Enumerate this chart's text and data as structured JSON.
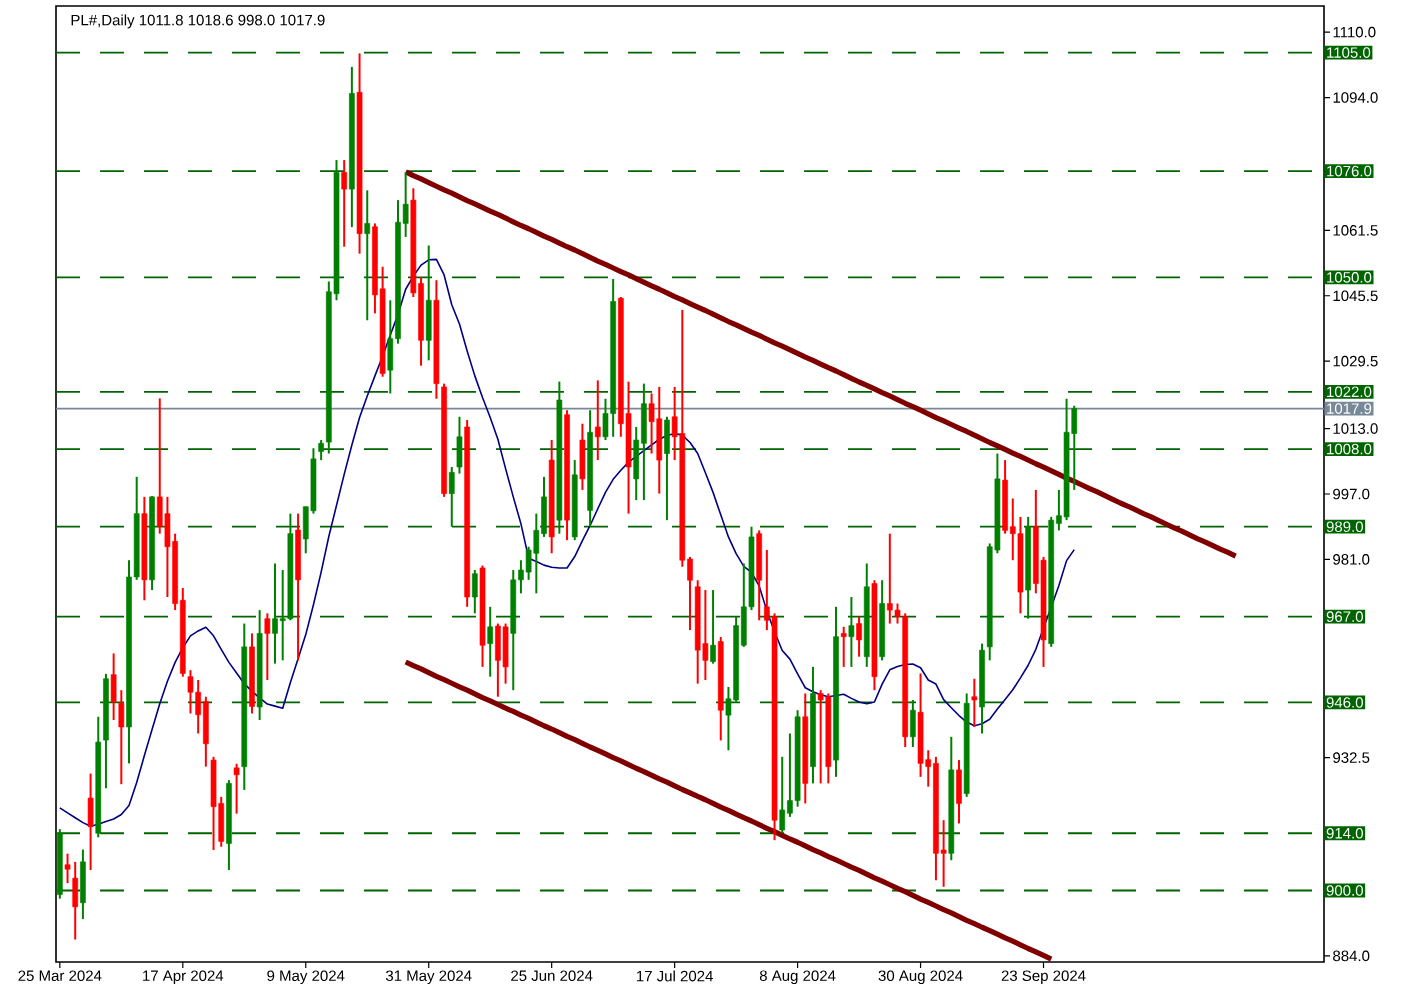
{
  "chart_data": {
    "type": "candlestick",
    "title": "PL#,Daily  1011.8 1018.6 998.0 1017.9",
    "categories": [
      "25 Mar 2024",
      null,
      null,
      null,
      null,
      null,
      null,
      null,
      null,
      null,
      null,
      null,
      null,
      null,
      null,
      null,
      "17 Apr 2024",
      null,
      null,
      null,
      null,
      null,
      null,
      null,
      null,
      null,
      null,
      null,
      null,
      null,
      null,
      null,
      "9 May 2024",
      null,
      null,
      null,
      null,
      null,
      null,
      null,
      null,
      null,
      null,
      null,
      null,
      null,
      null,
      null,
      "31 May 2024",
      null,
      null,
      null,
      null,
      null,
      null,
      null,
      null,
      null,
      null,
      null,
      null,
      null,
      null,
      null,
      "25 Jun 2024",
      null,
      null,
      null,
      null,
      null,
      null,
      null,
      null,
      null,
      null,
      null,
      null,
      null,
      null,
      null,
      "17 Jul 2024",
      null,
      null,
      null,
      null,
      null,
      null,
      null,
      null,
      null,
      null,
      null,
      null,
      null,
      null,
      null,
      "8 Aug 2024",
      null,
      null,
      null,
      null,
      null,
      null,
      null,
      null,
      null,
      null,
      null,
      null,
      null,
      null,
      null,
      "30 Aug 2024",
      null,
      null,
      null,
      null,
      null,
      null,
      null,
      null,
      null,
      null,
      null,
      null,
      null,
      null,
      null,
      "23 Sep 2024",
      null,
      null,
      null,
      null,
      null,
      null,
      null,
      null,
      null,
      null,
      null,
      null,
      null,
      null,
      null,
      null,
      null,
      null,
      null,
      null,
      null,
      null,
      null,
      null,
      null,
      null,
      null,
      null,
      null,
      null,
      null,
      null,
      null,
      null,
      null,
      null
    ],
    "ohlc": [
      [
        899,
        915,
        898,
        914
      ],
      [
        906.3,
        909,
        901.8,
        905.2
      ],
      [
        903,
        907,
        888,
        896
      ],
      [
        897,
        910,
        893,
        907
      ],
      [
        922.6,
        928.6,
        905,
        915.6
      ],
      [
        914,
        942.5,
        913,
        936.3
      ],
      [
        936.8,
        953,
        925,
        951.8
      ],
      [
        952.8,
        958,
        941.7,
        946.2
      ],
      [
        945.8,
        949,
        926,
        940
      ],
      [
        940,
        980.8,
        931.1,
        976.7
      ],
      [
        976.7,
        1001.2,
        976,
        992.2
      ],
      [
        992.2,
        996.3,
        971,
        976
      ],
      [
        976,
        996.5,
        973.5,
        996.3
      ],
      [
        996.3,
        1020.4,
        987.3,
        989
      ],
      [
        992.2,
        996.3,
        971.8,
        984.1
      ],
      [
        985.4,
        987.3,
        968.6,
        970.2
      ],
      [
        971,
        974,
        952.3,
        953.1
      ],
      [
        952.3,
        953.9,
        943.3,
        948.5
      ],
      [
        948.5,
        951.5,
        938.4,
        943
      ],
      [
        946.2,
        947.4,
        930.3,
        935.9
      ],
      [
        931.9,
        932.7,
        909.9,
        920.5
      ],
      [
        921.3,
        922.9,
        910.7,
        912
      ],
      [
        911.5,
        927,
        905,
        926.2
      ],
      [
        930,
        931,
        918.8,
        928.3
      ],
      [
        930.3,
        965.3,
        924.6,
        959.6
      ],
      [
        959.6,
        962.9,
        943.3,
        945
      ],
      [
        944.9,
        968.6,
        941.7,
        962.9
      ],
      [
        966.5,
        967.8,
        951.5,
        962.9
      ],
      [
        962.9,
        980,
        955.5,
        966.5
      ],
      [
        966,
        978.4,
        956.3,
        966.5
      ],
      [
        966.5,
        992.2,
        966.1,
        987.3
      ],
      [
        988.2,
        992.2,
        956.3,
        976
      ],
      [
        986,
        993.9,
        982.5,
        993.9
      ],
      [
        992.9,
        1008.2,
        992.2,
        1005.6
      ],
      [
        1007.4,
        1010.2,
        1005.3,
        1009.4
      ],
      [
        1009.7,
        1049,
        1006.9,
        1046.5
      ],
      [
        1046,
        1078.7,
        1044.4,
        1075.7
      ],
      [
        1075.7,
        1078.7,
        1057.5,
        1071.6
      ],
      [
        1071.6,
        1101.5,
        1062.3,
        1095
      ],
      [
        1095.3,
        1104.8,
        1055.8,
        1060.7
      ],
      [
        1060.7,
        1071.3,
        1039.5,
        1063.2
      ],
      [
        1062.4,
        1063.2,
        1041.2,
        1045.7
      ],
      [
        1047.2,
        1052.6,
        1025.7,
        1026.5
      ],
      [
        1027.3,
        1044.4,
        1021.6,
        1035
      ],
      [
        1035,
        1068.9,
        1033.8,
        1063.5
      ],
      [
        1063.2,
        1075.7,
        1059.9,
        1067.9
      ],
      [
        1068.9,
        1071.8,
        1045.2,
        1046.2
      ],
      [
        1048.5,
        1050.1,
        1028.4,
        1034.6
      ],
      [
        1034.6,
        1057.8,
        1029.7,
        1044.4
      ],
      [
        1044.4,
        1049.3,
        1020.3,
        1024
      ],
      [
        1023.2,
        1024,
        996.3,
        997.1
      ],
      [
        997.1,
        1003.6,
        989,
        1002.3
      ],
      [
        1003.6,
        1015.9,
        1002,
        1011
      ],
      [
        1013.4,
        1015.1,
        969.4,
        971.8
      ],
      [
        971.8,
        978.4,
        967.8,
        977.5
      ],
      [
        978.9,
        979.5,
        954.7,
        960
      ],
      [
        960.4,
        969.4,
        952.3,
        964.5
      ],
      [
        964.7,
        965.3,
        947.4,
        956.3
      ],
      [
        964.5,
        965.3,
        950.6,
        954.7
      ],
      [
        962.9,
        978.4,
        949,
        976
      ],
      [
        976,
        980.8,
        972.7,
        978.4
      ],
      [
        977.9,
        984.1,
        976,
        983.3
      ],
      [
        982.5,
        992.2,
        972.7,
        988.1
      ],
      [
        987.3,
        1001.2,
        986.5,
        996.3
      ],
      [
        1005.3,
        1010.2,
        982.5,
        986.5
      ],
      [
        990.6,
        1024.5,
        987.3,
        1020
      ],
      [
        1016.4,
        1017.5,
        985.7,
        990.6
      ],
      [
        986.5,
        1005.3,
        985.7,
        1001.7
      ],
      [
        1010.2,
        1014.2,
        998,
        1000.7
      ],
      [
        993,
        1017.5,
        989,
        1012.1
      ],
      [
        1013.4,
        1024.8,
        1005.3,
        1011
      ],
      [
        1011,
        1020.3,
        1010.2,
        1016.7
      ],
      [
        1016.7,
        1049.6,
        1011,
        1044.1
      ],
      [
        1044.9,
        1045.2,
        1011,
        1014.2
      ],
      [
        1016.7,
        1024.5,
        992.2,
        1003.6
      ],
      [
        1000.7,
        1013.4,
        995.5,
        1010.2
      ],
      [
        1009.4,
        1024,
        995.5,
        1019.1
      ],
      [
        1019.1,
        1021.6,
        1006.9,
        1014.7
      ],
      [
        1015.4,
        1023.2,
        997.1,
        1005.3
      ],
      [
        1006.9,
        1015.9,
        990.6,
        1015.1
      ],
      [
        1015.9,
        1023.2,
        1005.3,
        1011
      ],
      [
        1011.8,
        1042,
        979.2,
        980.8
      ],
      [
        981.1,
        981.6,
        963.7,
        975.9
      ],
      [
        974.3,
        975.9,
        950.6,
        958.8
      ],
      [
        960.4,
        973.5,
        951.5,
        956.3
      ],
      [
        956,
        973.5,
        955.5,
        960
      ],
      [
        960.9,
        962,
        936.7,
        944.1
      ],
      [
        942.9,
        949.8,
        934.3,
        946.9
      ],
      [
        946.6,
        966.9,
        946.2,
        964.8
      ],
      [
        960,
        980,
        959.6,
        969.4
      ],
      [
        969.4,
        989,
        968.6,
        986.5
      ],
      [
        987.3,
        988.1,
        966.1,
        975.9
      ],
      [
        969.4,
        983.3,
        963.7,
        966.1
      ],
      [
        967,
        967.8,
        912.3,
        917.2
      ],
      [
        914.8,
        932.7,
        914,
        919.7
      ],
      [
        918.9,
        938.4,
        918,
        922
      ],
      [
        922,
        944.1,
        920.5,
        942.5
      ],
      [
        942.5,
        948.2,
        921.3,
        926.2
      ],
      [
        930.3,
        954.7,
        926.2,
        948.2
      ],
      [
        948.2,
        949,
        926.2,
        946.6
      ],
      [
        947.4,
        948.2,
        926.2,
        930.3
      ],
      [
        931.9,
        969.4,
        927.8,
        962.1
      ],
      [
        962.9,
        964.5,
        954.7,
        962.1
      ],
      [
        962.1,
        971.8,
        954.7,
        964.8
      ],
      [
        965.3,
        967,
        957.2,
        961.3
      ],
      [
        957.2,
        980,
        954.7,
        974.3
      ],
      [
        975.1,
        975.9,
        949,
        952.3
      ],
      [
        957.2,
        975.9,
        956.3,
        970.2
      ],
      [
        970.2,
        987.3,
        965.3,
        968.6
      ],
      [
        968.6,
        970.2,
        965.3,
        967
      ],
      [
        967,
        967.8,
        935.1,
        937.6
      ],
      [
        937.6,
        946.6,
        935.1,
        944.1
      ],
      [
        943.6,
        953.1,
        927.8,
        931.1
      ],
      [
        932,
        934.3,
        925.4,
        930.3
      ],
      [
        931.1,
        932.7,
        902.5,
        909.1
      ],
      [
        909.9,
        917.2,
        900.9,
        909.1
      ],
      [
        909.1,
        937.6,
        907.4,
        929.5
      ],
      [
        929.5,
        931.9,
        916.4,
        921.3
      ],
      [
        923.7,
        948.2,
        922.9,
        945.8
      ],
      [
        947.4,
        951.8,
        940,
        946.6
      ],
      [
        944.9,
        960.4,
        938.4,
        958.8
      ],
      [
        959.6,
        984.9,
        956.3,
        984.1
      ],
      [
        983.3,
        1006.9,
        982.5,
        1000.7
      ],
      [
        1000.4,
        1005.3,
        987.3,
        988.1
      ],
      [
        989,
        995.9,
        980.8,
        987.3
      ],
      [
        987.3,
        991.4,
        967.8,
        973
      ],
      [
        973.5,
        991.4,
        966.5,
        989
      ],
      [
        989,
        998,
        972.7,
        975.1
      ],
      [
        980.8,
        981.6,
        954.7,
        961.3
      ],
      [
        960.4,
        991.4,
        959.6,
        990.6
      ],
      [
        989.8,
        998,
        988.1,
        991.7
      ],
      [
        991.4,
        1020.3,
        990.6,
        1012.1
      ],
      [
        1011.8,
        1018.6,
        998,
        1017.9
      ],
      null,
      null,
      null,
      null,
      null,
      null,
      null,
      null,
      null,
      null,
      null,
      null,
      null,
      null,
      null,
      null,
      null,
      null,
      null,
      null,
      null,
      null,
      null,
      null,
      null,
      null,
      null,
      null,
      null,
      null,
      null,
      null
    ],
    "colors": [
      "#008000",
      "#ff0000",
      "#ff0000",
      "#008000",
      "#ff0000",
      "#008000",
      "#008000",
      "#ff0000",
      "#ff0000",
      "#008000",
      "#008000",
      "#ff0000",
      "#008000",
      "#ff0000",
      "#ff0000",
      "#ff0000",
      "#ff0000",
      "#ff0000",
      "#ff0000",
      "#ff0000",
      "#ff0000",
      "#ff0000",
      "#008000",
      "#ff0000",
      "#008000",
      "#ff0000",
      "#008000",
      "#ff0000",
      "#008000",
      "#008000",
      "#008000",
      "#ff0000",
      "#008000",
      "#008000",
      "#008000",
      "#008000",
      "#008000",
      "#ff0000",
      "#008000",
      "#ff0000",
      "#008000",
      "#ff0000",
      "#ff0000",
      "#008000",
      "#008000",
      "#008000",
      "#ff0000",
      "#ff0000",
      "#008000",
      "#ff0000",
      "#ff0000",
      "#008000",
      "#008000",
      "#ff0000",
      "#008000",
      "#ff0000",
      "#008000",
      "#ff0000",
      "#ff0000",
      "#008000",
      "#008000",
      "#008000",
      "#008000",
      "#008000",
      "#ff0000",
      "#008000",
      "#ff0000",
      "#008000",
      "#ff0000",
      "#008000",
      "#ff0000",
      "#008000",
      "#008000",
      "#ff0000",
      "#ff0000",
      "#008000",
      "#008000",
      "#ff0000",
      "#ff0000",
      "#008000",
      "#ff0000",
      "#ff0000",
      "#ff0000",
      "#ff0000",
      "#ff0000",
      "#008000",
      "#ff0000",
      "#008000",
      "#008000",
      "#008000",
      "#008000",
      "#ff0000",
      "#ff0000",
      "#ff0000",
      "#008000",
      "#008000",
      "#008000",
      "#ff0000",
      "#008000",
      "#ff0000",
      "#ff0000",
      "#008000",
      "#ff0000",
      "#008000",
      "#ff0000",
      "#008000",
      "#ff0000",
      "#008000",
      "#ff0000",
      "#ff0000",
      "#ff0000",
      "#008000",
      "#ff0000",
      "#ff0000",
      "#ff0000",
      "#ff0000",
      "#008000",
      "#ff0000",
      "#008000",
      "#ff0000",
      "#008000",
      "#008000",
      "#008000",
      "#ff0000",
      "#ff0000",
      "#ff0000",
      "#008000",
      "#ff0000",
      "#ff0000",
      "#008000",
      "#008000",
      "#008000",
      "#008000",
      null,
      null,
      null,
      null,
      null,
      null,
      null,
      null,
      null,
      null,
      null,
      null,
      null,
      null,
      null,
      null,
      null,
      null,
      null,
      null,
      null,
      null,
      null,
      null,
      null,
      null,
      null,
      null,
      null,
      null,
      null,
      null
    ],
    "series": [
      {
        "type": "line",
        "color": "#800000",
        "values": [
          null,
          null,
          null,
          null,
          null,
          null,
          null,
          null,
          null,
          null,
          null,
          null,
          null,
          null,
          null,
          null,
          null,
          null,
          null,
          null,
          null,
          null,
          null,
          null,
          null,
          null,
          null,
          null,
          null,
          null,
          null,
          null,
          null,
          null,
          null,
          null,
          null,
          null,
          null,
          null,
          null,
          null,
          null,
          null,
          null,
          1075.8,
          1074.9,
          1074.1,
          1073.2,
          1072.3,
          1071.4,
          1070.6,
          1069.7,
          1068.8,
          1068.0,
          1067.1,
          1066.2,
          1065.4,
          1064.5,
          1063.6,
          1062.7,
          1061.9,
          1061.0,
          1060.1,
          1059.3,
          1058.4,
          1057.5,
          1056.7,
          1055.8,
          1054.9,
          1054.0,
          1053.2,
          1052.3,
          1051.4,
          1050.6,
          1049.7,
          1048.8,
          1047.9,
          1047.1,
          1046.2,
          1045.3,
          1044.5,
          1043.6,
          1042.7,
          1041.9,
          1041.0,
          1040.1,
          1039.2,
          1038.4,
          1037.5,
          1036.6,
          1035.8,
          1034.9,
          1034.0,
          1033.2,
          1032.3,
          1031.4,
          1030.5,
          1029.7,
          1028.8,
          1027.9,
          1027.1,
          1026.2,
          1025.3,
          1024.4,
          1023.6,
          1022.7,
          1021.8,
          1021.0,
          1020.1,
          1019.2,
          1018.4,
          1017.5,
          1016.6,
          1015.7,
          1014.9,
          1014.0,
          1013.1,
          1012.3,
          1011.4,
          1010.5,
          1009.6,
          1008.8,
          1007.9,
          1007.0,
          1006.2,
          1005.3,
          1004.4,
          1003.6,
          1002.7,
          1001.8,
          1000.9,
          1000.1,
          999.2,
          998.3,
          997.5,
          996.6,
          995.7,
          994.8,
          994.0,
          993.1,
          992.2,
          991.4,
          990.5,
          989.6,
          988.7,
          987.9,
          987.0,
          986.1,
          985.3,
          984.4,
          983.5,
          982.7,
          981.8,
          null,
          null,
          null,
          null,
          null,
          null,
          null,
          null,
          null,
          null,
          null
        ]
      },
      {
        "type": "line",
        "color": "#800000",
        "values": [
          null,
          null,
          null,
          null,
          null,
          null,
          null,
          null,
          null,
          null,
          null,
          null,
          null,
          null,
          null,
          null,
          null,
          null,
          null,
          null,
          null,
          null,
          null,
          null,
          null,
          null,
          null,
          null,
          null,
          null,
          null,
          null,
          null,
          null,
          null,
          null,
          null,
          null,
          null,
          null,
          null,
          null,
          null,
          null,
          null,
          955.9,
          955.0,
          954.2,
          953.3,
          952.4,
          951.6,
          950.7,
          949.8,
          949.0,
          948.1,
          947.2,
          946.4,
          945.5,
          944.6,
          943.8,
          942.9,
          942.1,
          941.2,
          940.3,
          939.5,
          938.6,
          937.7,
          936.9,
          936.0,
          935.1,
          934.3,
          933.4,
          932.5,
          931.7,
          930.8,
          929.9,
          929.1,
          928.2,
          927.3,
          926.5,
          925.6,
          924.7,
          923.9,
          923.0,
          922.2,
          921.3,
          920.4,
          919.6,
          918.7,
          917.8,
          917.0,
          916.1,
          915.2,
          914.4,
          913.5,
          912.6,
          911.8,
          910.9,
          910.0,
          909.2,
          908.3,
          907.5,
          906.6,
          905.7,
          904.9,
          904.0,
          903.1,
          902.3,
          901.4,
          900.5,
          899.7,
          898.8,
          897.9,
          897.1,
          896.2,
          895.3,
          894.5,
          893.6,
          892.7,
          891.9,
          891.0,
          890.2,
          889.3,
          888.4,
          887.6,
          886.7,
          885.8,
          885.0,
          884.1,
          883.2,
          null,
          null,
          null,
          null,
          null,
          null,
          null,
          null,
          null,
          null,
          null,
          null,
          null,
          null,
          null,
          null,
          null,
          null,
          null,
          null,
          null,
          null,
          null,
          null,
          null,
          null,
          null,
          null,
          null,
          null,
          null,
          null,
          null,
          null,
          null
        ]
      },
      {
        "type": "line",
        "color": "#000080",
        "values": [
          920.2,
          919.0,
          917.8,
          916.6,
          915.7,
          916.2,
          916.9,
          917.5,
          918.6,
          920.8,
          926.4,
          933.0,
          939.4,
          945.7,
          951.2,
          955.8,
          959.4,
          962.3,
          963.5,
          964.4,
          962.3,
          959.0,
          955.8,
          953.2,
          950.6,
          948.7,
          947.1,
          945.6,
          945.1,
          944.6,
          950.9,
          956.7,
          962.6,
          969.9,
          977.9,
          986.6,
          994.2,
          1001.8,
          1009.0,
          1015.7,
          1021.0,
          1025.9,
          1030.7,
          1035.9,
          1040.9,
          1047.1,
          1050.3,
          1053.0,
          1054.3,
          1054.4,
          1050.6,
          1043.3,
          1038.6,
          1032.0,
          1025.9,
          1020.6,
          1015.7,
          1010.4,
          1003.2,
          996.3,
          989.7,
          981.3,
          980.5,
          979.6,
          979.1,
          978.9,
          978.9,
          981.7,
          985.6,
          989.3,
          993.4,
          997.4,
          1000.6,
          1002.8,
          1004.8,
          1006.2,
          1007.6,
          1009.0,
          1010.4,
          1011.3,
          1011.8,
          1011.4,
          1009.6,
          1006.9,
          1002.2,
          997.4,
          991.9,
          986.5,
          982.4,
          979.3,
          977.8,
          974.5,
          968.4,
          963.3,
          958.7,
          956.6,
          953.0,
          949.6,
          948.6,
          947.9,
          947.4,
          947.7,
          948.0,
          947.0,
          946.1,
          945.7,
          946.1,
          950.5,
          954.0,
          954.8,
          955.3,
          955.4,
          954.5,
          951.5,
          950.5,
          946.7,
          944.7,
          942.8,
          941.2,
          940.3,
          940.8,
          941.9,
          944.4,
          946.7,
          949.1,
          952.0,
          955.1,
          959.0,
          964.2,
          969.3,
          974.6,
          980.7,
          983.4,
          null,
          null,
          null,
          null,
          null,
          null,
          null,
          null,
          null,
          null,
          null,
          null,
          null,
          null,
          null,
          null,
          null,
          null,
          null,
          null,
          null,
          null,
          null,
          null,
          null,
          null,
          null,
          null,
          null,
          null,
          null,
          null
        ]
      }
    ],
    "ylim": [
      882.5,
      1116.4
    ],
    "yticks": [
      {
        "value": 884,
        "label": "884.0"
      },
      {
        "value": 932.5,
        "label": "932.5"
      },
      {
        "value": 981,
        "label": "981.0"
      },
      {
        "value": 997,
        "label": "997.0"
      },
      {
        "value": 1013,
        "label": "1013.0"
      },
      {
        "value": 1029.5,
        "label": "1029.5"
      },
      {
        "value": 1045.5,
        "label": "1045.5"
      },
      {
        "value": 1061.5,
        "label": "1061.5"
      },
      {
        "value": 1094,
        "label": "1094.0"
      },
      {
        "value": 1110,
        "label": "1110.0"
      }
    ],
    "ref_lines": [
      {
        "axis": "y",
        "value": 1105,
        "label": "1105.0",
        "color": "#006400",
        "line_style": "dashed"
      },
      {
        "axis": "y",
        "value": 1076,
        "label": "1076.0",
        "color": "#006400",
        "line_style": "dashed"
      },
      {
        "axis": "y",
        "value": 1050,
        "label": "1050.0",
        "color": "#006400",
        "line_style": "dashed"
      },
      {
        "axis": "y",
        "value": 1022,
        "label": "1022.0",
        "color": "#006400",
        "line_style": "dashed"
      },
      {
        "axis": "y",
        "value": 1017.9,
        "label": "1017.9",
        "color": "#778899",
        "line_style": "solid"
      },
      {
        "axis": "y",
        "value": 1008,
        "label": "1008.0",
        "color": "#006400",
        "line_style": "dashed"
      },
      {
        "axis": "y",
        "value": 989,
        "label": "989.0",
        "color": "#006400",
        "line_style": "dashed"
      },
      {
        "axis": "y",
        "value": 967,
        "label": "967.0",
        "color": "#006400",
        "line_style": "dashed"
      },
      {
        "axis": "y",
        "value": 946,
        "label": "946.0",
        "color": "#006400",
        "line_style": "dashed"
      },
      {
        "axis": "y",
        "value": 914,
        "label": "914.0",
        "color": "#006400",
        "line_style": "dashed"
      },
      {
        "axis": "y",
        "value": 900,
        "label": "900.0",
        "color": "#006400",
        "line_style": "dashed"
      }
    ]
  }
}
